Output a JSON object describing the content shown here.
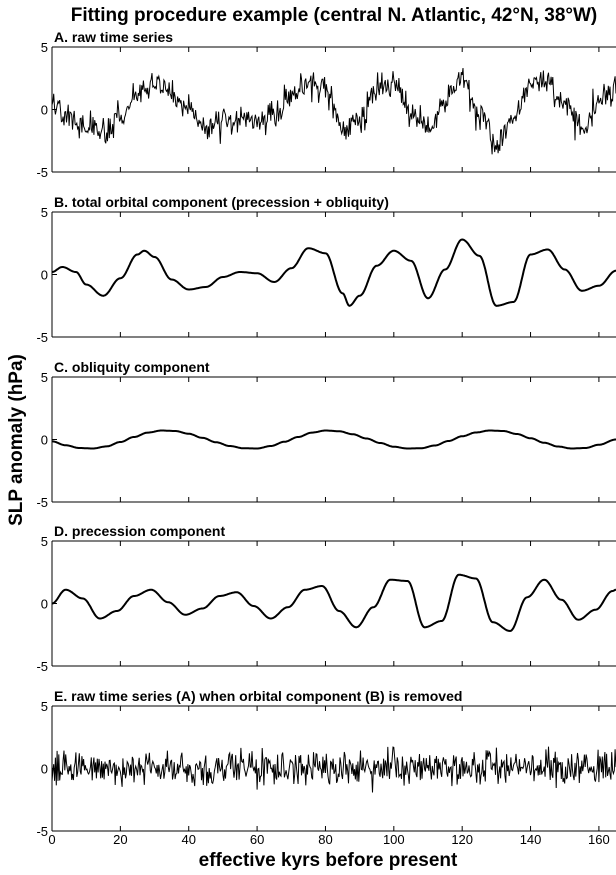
{
  "chart_data": {
    "title": "Fitting procedure example (central N. Atlantic, 42°N, 38°W)",
    "xlabel": "effective kyrs before present",
    "ylabel": "SLP anomaly (hPa)",
    "xlim": [
      0,
      165
    ],
    "x_ticks": [
      "0",
      "20",
      "40",
      "60",
      "80",
      "100",
      "120",
      "140",
      "160"
    ],
    "x_tick_values": [
      0,
      20,
      40,
      60,
      80,
      100,
      120,
      140,
      160
    ],
    "panels": [
      {
        "type": "line",
        "title": "A. raw time series",
        "ylim": [
          -5,
          5
        ],
        "y_ticks": [
          "-5",
          "0",
          "5"
        ],
        "x": [
          0,
          5,
          10,
          15,
          20,
          25,
          30,
          35,
          40,
          45,
          50,
          55,
          60,
          65,
          70,
          75,
          80,
          85,
          90,
          95,
          100,
          105,
          110,
          115,
          120,
          125,
          130,
          135,
          140,
          145,
          150,
          155,
          160,
          165
        ],
        "values": [
          0.5,
          -0.5,
          -1.2,
          -1.8,
          -1.0,
          1.2,
          2.2,
          1.3,
          -0.4,
          -1.4,
          -1.1,
          -0.8,
          -0.9,
          -0.2,
          0.9,
          2.2,
          1.4,
          -1.6,
          -0.9,
          1.5,
          2.0,
          -0.3,
          -1.7,
          1.0,
          2.6,
          -0.6,
          -3.0,
          -0.4,
          1.8,
          2.2,
          0.2,
          -1.3,
          0.6,
          1.5
        ],
        "noise_amplitude": 0.9
      },
      {
        "type": "line",
        "title": "B. total orbital component (precession + obliquity)",
        "ylim": [
          -5,
          5
        ],
        "y_ticks": [
          "-5",
          "0",
          "5"
        ],
        "x": [
          0,
          3,
          7,
          10,
          15,
          20,
          25,
          27,
          30,
          35,
          40,
          45,
          50,
          55,
          60,
          65,
          70,
          75,
          80,
          85,
          87,
          90,
          95,
          100,
          105,
          110,
          115,
          120,
          125,
          130,
          135,
          140,
          145,
          150,
          155,
          160,
          165
        ],
        "values": [
          0.2,
          0.6,
          0.2,
          -0.8,
          -1.7,
          -0.3,
          1.6,
          1.9,
          1.4,
          -0.4,
          -1.2,
          -1.0,
          -0.2,
          0.2,
          0.1,
          -0.6,
          0.5,
          2.1,
          1.7,
          -1.5,
          -2.5,
          -1.7,
          0.7,
          1.9,
          1.1,
          -1.9,
          0.4,
          2.8,
          1.5,
          -2.5,
          -2.2,
          1.6,
          2.0,
          0.4,
          -1.3,
          -0.9,
          0.3
        ]
      },
      {
        "type": "line",
        "title": "C. obliquity component",
        "ylim": [
          -5,
          5
        ],
        "y_ticks": [
          "-5",
          "0",
          "5"
        ],
        "x": [
          0,
          4,
          8,
          12,
          16,
          20,
          24,
          28,
          32,
          36,
          40,
          44,
          48,
          52,
          56,
          60,
          64,
          68,
          72,
          76,
          80,
          84,
          88,
          92,
          96,
          100,
          104,
          108,
          112,
          116,
          120,
          124,
          128,
          132,
          136,
          140,
          144,
          148,
          152,
          156,
          160,
          165
        ],
        "values": [
          -0.15,
          -0.46,
          -0.68,
          -0.72,
          -0.55,
          -0.2,
          0.2,
          0.55,
          0.72,
          0.68,
          0.46,
          0.13,
          -0.22,
          -0.52,
          -0.7,
          -0.72,
          -0.52,
          -0.18,
          0.2,
          0.55,
          0.72,
          0.66,
          0.42,
          0.08,
          -0.28,
          -0.58,
          -0.72,
          -0.7,
          -0.48,
          -0.12,
          0.26,
          0.56,
          0.72,
          0.68,
          0.44,
          0.1,
          -0.26,
          -0.56,
          -0.72,
          -0.68,
          -0.42,
          0.0
        ]
      },
      {
        "type": "line",
        "title": "D. precession component",
        "ylim": [
          -5,
          5
        ],
        "y_ticks": [
          "-5",
          "0",
          "5"
        ],
        "x": [
          0,
          4,
          9,
          14,
          19,
          24,
          29,
          34,
          39,
          44,
          49,
          54,
          59,
          64,
          69,
          74,
          79,
          84,
          89,
          94,
          99,
          104,
          109,
          114,
          119,
          124,
          129,
          134,
          139,
          144,
          149,
          154,
          159,
          164,
          165
        ],
        "values": [
          0.0,
          1.1,
          0.4,
          -1.2,
          -0.6,
          0.6,
          1.1,
          0.1,
          -0.9,
          -0.4,
          0.6,
          0.9,
          -0.2,
          -1.2,
          -0.3,
          1.1,
          1.4,
          -0.6,
          -1.9,
          -0.3,
          1.9,
          1.8,
          -1.9,
          -1.4,
          2.3,
          2.0,
          -1.5,
          -2.2,
          0.5,
          1.9,
          0.3,
          -1.3,
          -0.5,
          1.0,
          1.1
        ]
      },
      {
        "type": "line",
        "title": "E. raw time series (A) when orbital component (B) is removed",
        "ylim": [
          -5,
          5
        ],
        "y_ticks": [
          "-5",
          "0",
          "5"
        ],
        "x": [
          0,
          165
        ],
        "values": [
          0,
          0
        ],
        "noise_amplitude": 1.1
      }
    ]
  }
}
